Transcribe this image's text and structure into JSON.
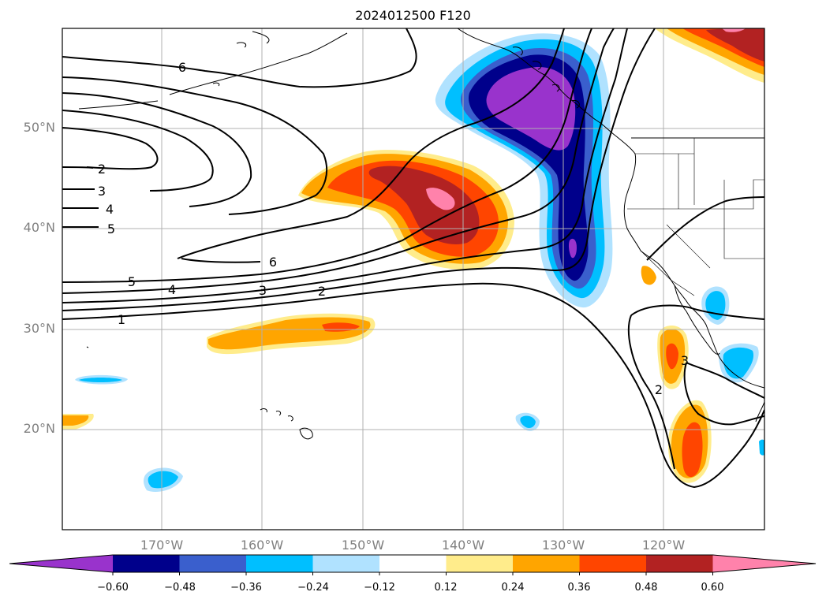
{
  "title": "2024012500 F120",
  "lat_labels": [
    "50°N",
    "40°N",
    "30°N",
    "20°N"
  ],
  "lon_labels": [
    "170°W",
    "160°W",
    "150°W",
    "140°W",
    "130°W",
    "120°W"
  ],
  "contour_labels": [
    "6",
    "2",
    "3",
    "4",
    "5",
    "6",
    "5",
    "4",
    "3",
    "2",
    "1",
    "2",
    "3"
  ],
  "colorbar": {
    "colors": [
      "#9933cc",
      "#00008b",
      "#3a5fcd",
      "#00bfff",
      "#b0e2ff",
      "#ffffff",
      "#ffec8b",
      "#ffa500",
      "#ff4500",
      "#b22222",
      "#ff82ab"
    ],
    "tick_labels": [
      "−0.60",
      "−0.48",
      "−0.36",
      "−0.24",
      "−0.12",
      "0.12",
      "0.24",
      "0.36",
      "0.48",
      "0.60"
    ]
  },
  "map_colors": {
    "grid": "#b0b0b0",
    "contour": "#000000",
    "coast": "#000000"
  }
}
